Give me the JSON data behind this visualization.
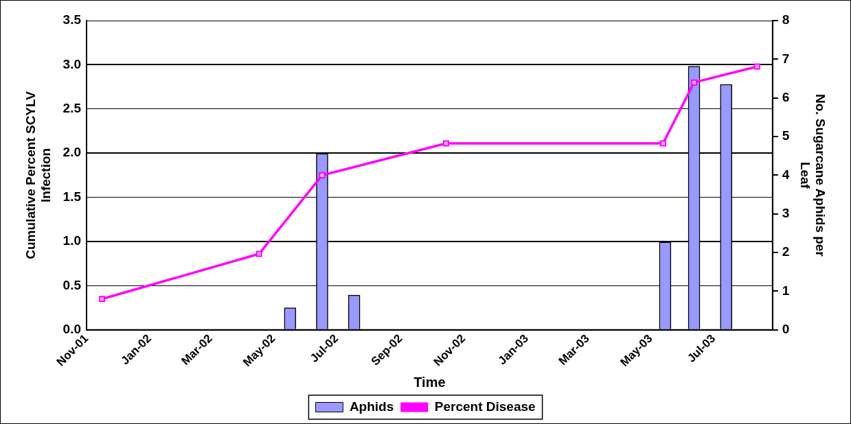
{
  "chart_data": {
    "type": "bar",
    "xlabel": "Time",
    "ylabel": "Cumulative Percent SCYLV Infection",
    "y2label": "No. Sugarcane Aphids per Leaf",
    "xlim": [
      "2001-11-01",
      "2003-08-27"
    ],
    "xticks": [
      {
        "value": "2001-11",
        "label": "Nov-01"
      },
      {
        "value": "2002-01",
        "label": "Jan-02"
      },
      {
        "value": "2002-03",
        "label": "Mar-02"
      },
      {
        "value": "2002-05",
        "label": "May-02"
      },
      {
        "value": "2002-07",
        "label": "Jul-02"
      },
      {
        "value": "2002-09",
        "label": "Sep-02"
      },
      {
        "value": "2002-11",
        "label": "Nov-02"
      },
      {
        "value": "2003-01",
        "label": "Jan-03"
      },
      {
        "value": "2003-03",
        "label": "Mar-03"
      },
      {
        "value": "2003-05",
        "label": "May-03"
      },
      {
        "value": "2003-07",
        "label": "Jul-03"
      }
    ],
    "ylim": [
      0,
      3.5
    ],
    "yticks": [
      {
        "value": 0,
        "label": "0.0"
      },
      0.5,
      {
        "value": 1,
        "label": "1.0"
      },
      1.5,
      {
        "value": 2,
        "label": "2.0"
      },
      2.5,
      {
        "value": 3,
        "label": "3.0"
      },
      3.5
    ],
    "y2lim": [
      0,
      8
    ],
    "y2ticks": [
      0,
      1,
      2,
      3,
      4,
      5,
      6,
      7,
      8
    ],
    "grid": "y",
    "legend": "bottom",
    "marker": "square",
    "series": [
      {
        "name": "Aphids",
        "axis": "y2",
        "color": "#9999ff",
        "x": [
          "2002-05-17",
          "2002-06-17",
          "2002-07-18",
          "2003-05-15",
          "2003-06-12",
          "2003-07-13"
        ],
        "values": [
          0.57,
          4.56,
          0.9,
          2.27,
          6.82,
          6.35
        ]
      },
      {
        "name": "Percent Disease",
        "type": "line",
        "color": "#ff00ff",
        "x": [
          "2001-11-16",
          "2002-04-17",
          "2002-06-17",
          "2002-10-15",
          "2003-05-13",
          "2003-06-12",
          "2003-08-12"
        ],
        "values": [
          0.35,
          0.86,
          1.75,
          2.11,
          2.11,
          2.8,
          2.98
        ]
      }
    ]
  }
}
